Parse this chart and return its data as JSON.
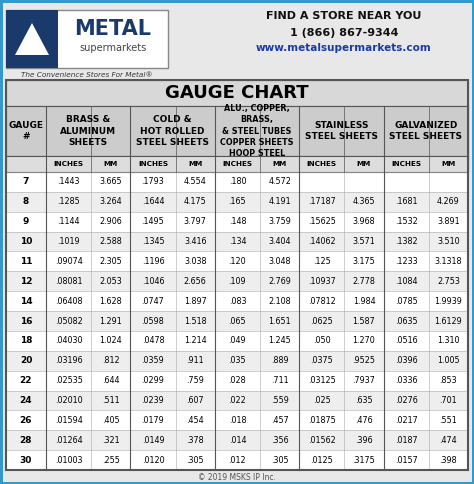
{
  "title": "GAUGE CHART",
  "col_headers": [
    "GAUGE\n#",
    "BRASS &\nALUMINUM\nSHEETS",
    "COLD &\nHOT ROLLED\nSTEEL SHEETS",
    "ALU., COPPER,\nBRASS,\n& STEEL TUBES\nCOPPER SHEETS\nHOOP STEEL",
    "STAINLESS\nSTEEL SHEETS",
    "GALVANIZED\nSTEEL SHEETS"
  ],
  "sub_labels": [
    "INCHES",
    "MM",
    "INCHES",
    "MM",
    "INCHES",
    "MM",
    "INCHES",
    "MM",
    "INCHES",
    "MM"
  ],
  "rows": [
    [
      "7",
      ".1443",
      "3.665",
      ".1793",
      "4.554",
      ".180",
      "4.572",
      "",
      "",
      "",
      ""
    ],
    [
      "8",
      ".1285",
      "3.264",
      ".1644",
      "4.175",
      ".165",
      "4.191",
      ".17187",
      "4.365",
      ".1681",
      "4.269"
    ],
    [
      "9",
      ".1144",
      "2.906",
      ".1495",
      "3.797",
      ".148",
      "3.759",
      ".15625",
      "3.968",
      ".1532",
      "3.891"
    ],
    [
      "10",
      ".1019",
      "2.588",
      ".1345",
      "3.416",
      ".134",
      "3.404",
      ".14062",
      "3.571",
      ".1382",
      "3.510"
    ],
    [
      "11",
      ".09074",
      "2.305",
      ".1196",
      "3.038",
      ".120",
      "3.048",
      ".125",
      "3.175",
      ".1233",
      "3.1318"
    ],
    [
      "12",
      ".08081",
      "2.053",
      ".1046",
      "2.656",
      ".109",
      "2.769",
      ".10937",
      "2.778",
      ".1084",
      "2.753"
    ],
    [
      "14",
      ".06408",
      "1.628",
      ".0747",
      "1.897",
      ".083",
      "2.108",
      ".07812",
      "1.984",
      ".0785",
      "1.9939"
    ],
    [
      "16",
      ".05082",
      "1.291",
      ".0598",
      "1.518",
      ".065",
      "1.651",
      ".0625",
      "1.587",
      ".0635",
      "1.6129"
    ],
    [
      "18",
      ".04030",
      "1.024",
      ".0478",
      "1.214",
      ".049",
      "1.245",
      ".050",
      "1.270",
      ".0516",
      "1.310"
    ],
    [
      "20",
      ".03196",
      ".812",
      ".0359",
      ".911",
      ".035",
      ".889",
      ".0375",
      ".9525",
      ".0396",
      "1.005"
    ],
    [
      "22",
      ".02535",
      ".644",
      ".0299",
      ".759",
      ".028",
      ".711",
      ".03125",
      ".7937",
      ".0336",
      ".853"
    ],
    [
      "24",
      ".02010",
      ".511",
      ".0239",
      ".607",
      ".022",
      ".559",
      ".025",
      ".635",
      ".0276",
      ".701"
    ],
    [
      "26",
      ".01594",
      ".405",
      ".0179",
      ".454",
      ".018",
      ".457",
      ".01875",
      ".476",
      ".0217",
      ".551"
    ],
    [
      "28",
      ".01264",
      ".321",
      ".0149",
      ".378",
      ".014",
      ".356",
      ".01562",
      ".396",
      ".0187",
      ".474"
    ],
    [
      "30",
      ".01003",
      ".255",
      ".0120",
      ".305",
      ".012",
      ".305",
      ".0125",
      ".3175",
      ".0157",
      ".398"
    ]
  ],
  "bg_color": "#e8e8e8",
  "outer_border_color": "#3399cc",
  "inner_border_color": "#555555",
  "title_bg": "#d8d8d8",
  "header_bg": "#cccccc",
  "subheader_bg": "#dddddd",
  "row_bg_even": "#ffffff",
  "row_bg_odd": "#eeeeee",
  "logo_box_border": "#888888",
  "logo_blue": "#1a3a6b",
  "logo_text_gray": "#444444",
  "tagline_color": "#333333",
  "contact_bold_color": "#111111",
  "website_color": "#1a3aaa",
  "copyright_color": "#555555",
  "find_store": "FIND A STORE NEAR YOU",
  "phone": "1 (866) 867-9344",
  "website": "www.metalsupermarkets.com",
  "tagline": "The Convenience Stores For Metal®",
  "copyright": "© 2019 MSKS IP Inc."
}
